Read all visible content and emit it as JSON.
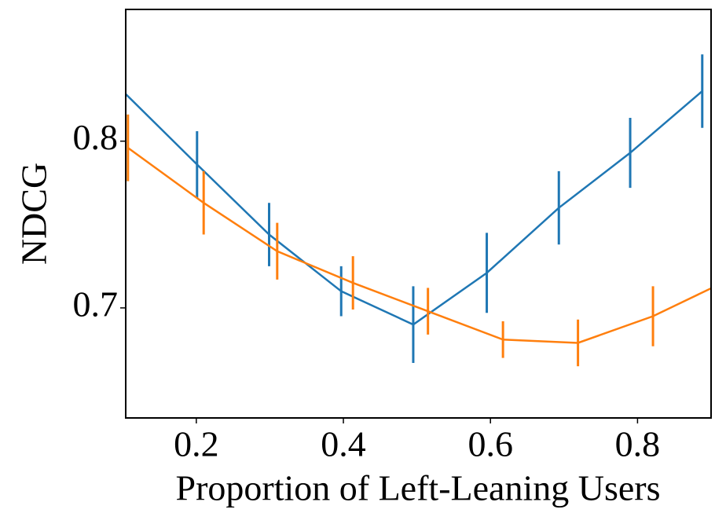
{
  "chart_data": {
    "type": "line",
    "x_label": "Proportion of Left-Leaning Users",
    "y_label": "NDCG",
    "xlim": [
      0.104,
      0.9
    ],
    "ylim": [
      0.634,
      0.879
    ],
    "xticks": [
      0.2,
      0.4,
      0.6,
      0.8
    ],
    "yticks": [
      0.7,
      0.8
    ],
    "grid": false,
    "series": [
      {
        "color": "#1f77b4",
        "x": [
          0.1,
          0.201,
          0.299,
          0.397,
          0.495,
          0.595,
          0.693,
          0.79,
          0.888
        ],
        "values": [
          0.83,
          0.786,
          0.744,
          0.71,
          0.69,
          0.721,
          0.76,
          0.793,
          0.83
        ],
        "errors": [
          0.02,
          0.02,
          0.019,
          0.015,
          0.023,
          0.024,
          0.022,
          0.021,
          0.022
        ]
      },
      {
        "color": "#ff7f0e",
        "x": [
          0.107,
          0.21,
          0.31,
          0.413,
          0.515,
          0.617,
          0.719,
          0.821,
          0.92
        ],
        "values": [
          0.796,
          0.763,
          0.734,
          0.715,
          0.698,
          0.681,
          0.679,
          0.695,
          0.716
        ],
        "errors": [
          0.02,
          0.019,
          0.017,
          0.016,
          0.014,
          0.011,
          0.014,
          0.018,
          0.018
        ]
      }
    ]
  }
}
